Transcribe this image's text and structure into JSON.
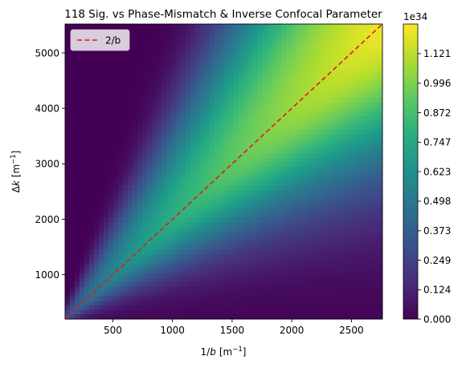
{
  "chart_data": {
    "type": "heatmap",
    "title": "118 Sig. vs Phase-Mismatch & Inverse Confocal Parameter",
    "xlabel_main": "1/",
    "xlabel_var": "b",
    "xlabel_unit": "[m",
    "xlabel_exp": "−1",
    "xlabel_close": "]",
    "ylabel_main": "Δ",
    "ylabel_var": "k",
    "ylabel_unit": "[m",
    "ylabel_exp": "−1",
    "ylabel_close": "]",
    "xlim": [
      100,
      2760
    ],
    "ylim": [
      200,
      5520
    ],
    "x_ticks": [
      500,
      1000,
      1500,
      2000,
      2500
    ],
    "x_tick_labels": [
      "500",
      "1000",
      "1500",
      "2000",
      "2500"
    ],
    "y_ticks": [
      1000,
      2000,
      3000,
      4000,
      5000
    ],
    "y_tick_labels": [
      "1000",
      "2000",
      "3000",
      "4000",
      "5000"
    ],
    "colorbar": {
      "min": 0.0,
      "max": 1.246,
      "ticks": [
        0.0,
        0.124,
        0.249,
        0.373,
        0.498,
        0.623,
        0.747,
        0.872,
        0.996,
        1.121
      ],
      "tick_labels": [
        "0.000",
        "0.124",
        "0.249",
        "0.373",
        "0.498",
        "0.623",
        "0.747",
        "0.872",
        "0.996",
        "1.121"
      ],
      "offset_label": "1e34",
      "colormap": "viridis"
    },
    "ridge_line": {
      "label": "2/b",
      "slope": 2,
      "color": "#e41a1c",
      "style": "dashed"
    },
    "legend": {
      "position": "upper-left",
      "entries": [
        "2/b"
      ]
    },
    "grid": false
  }
}
